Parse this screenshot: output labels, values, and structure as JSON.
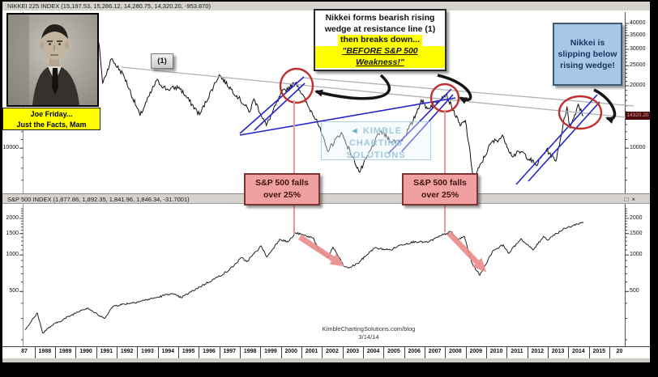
{
  "panes": {
    "nikkei": {
      "header": "NIKKEI 225 INDEX (15,197.53, 15,286.12, 14,280.75, 14,320.20, -953.870)"
    },
    "sp500": {
      "header": "S&P 500 INDEX (1,877.86, 1,892.35, 1,841.96, 1,846.34, -31.7001)",
      "controls": {
        "restore": "□",
        "close": "×"
      }
    }
  },
  "photo": {
    "caption1": "Joe Friday...",
    "caption2": "Just the Facts, Mam"
  },
  "annotations": {
    "resistance_label": "(1)",
    "yellow_box": {
      "line1": "Nikkei forms bearish rising",
      "line2": "wedge at resistance line (1)",
      "line3": "then breaks down...",
      "line4": "\"BEFORE S&P 500 Weakness!\""
    },
    "blue_box": {
      "text": "Nikkei is slipping below rising wedge!"
    },
    "pink_box_1": {
      "text": "S&P 500 falls over 25%"
    },
    "pink_box_2": {
      "text": "S&P 500 falls over 25%"
    },
    "price_badge": "14320.20",
    "watermark_center": {
      "arrow": "◄",
      "line1": "KIMBLE CHARTING",
      "line2": "SOLUTIONS"
    },
    "watermark_bottom": {
      "line1": "KimbleChartingSolutions.com/blog",
      "line2": "3/14/14"
    }
  },
  "colors": {
    "highlight_yellow": "#ffff00",
    "blue_box_bg": "#a7c7e7",
    "pink_box_bg": "#f0a0a0",
    "circle_red": "#bf3030",
    "wedge_blue": "#2424cc",
    "arrow_red": "#ec8b8b",
    "annotation_pink_line": "#e59b9b",
    "header_gray": "#d6d3ce",
    "badge_bg": "#4d0d0d"
  },
  "x_axis": {
    "labels": [
      "87",
      "1988",
      "1989",
      "1990",
      "1991",
      "1992",
      "1993",
      "1994",
      "1995",
      "1996",
      "1997",
      "1998",
      "1999",
      "2000",
      "2001",
      "2002",
      "2003",
      "2004",
      "2005",
      "2006",
      "2007",
      "2008",
      "2009",
      "2010",
      "2011",
      "2012",
      "2013",
      "2014",
      "2015",
      "20"
    ]
  },
  "chart_data": [
    {
      "type": "line",
      "title": "NIKKEI 225 INDEX",
      "scale": "log",
      "x_range": [
        1987,
        2016.3
      ],
      "ylim": [
        6500,
        45000
      ],
      "y_ticks_right": [
        40000,
        35000,
        30000,
        25000,
        20000,
        10000
      ],
      "y_ticks_left": [
        10000
      ],
      "grid": false,
      "series": [
        {
          "name": "NIKKEI 225",
          "x": [
            1987.0,
            1987.45,
            1987.75,
            1987.88,
            1988.6,
            1989.0,
            1989.95,
            1990.25,
            1990.5,
            1990.62,
            1990.78,
            1991.2,
            1991.8,
            1992.6,
            1993.4,
            1993.9,
            1994.5,
            1995.5,
            1996.45,
            1997.4,
            1997.95,
            1998.15,
            1998.75,
            1999.5,
            2000.2,
            2000.8,
            2001.2,
            2001.72,
            2002.4,
            2003.3,
            2004.3,
            2004.9,
            2005.4,
            2005.9,
            2006.3,
            2006.6,
            2007.5,
            2008.2,
            2008.45,
            2008.85,
            2009.7,
            2010.3,
            2010.7,
            2011.2,
            2011.9,
            2012.4,
            2012.85,
            2013.4,
            2013.55,
            2013.95,
            2014.2
          ],
          "values": [
            20000,
            24500,
            26600,
            21500,
            27500,
            31500,
            38900,
            29500,
            33000,
            31000,
            20500,
            27000,
            22500,
            14350,
            21200,
            19200,
            19700,
            14500,
            22600,
            17500,
            15000,
            17300,
            12850,
            18500,
            20800,
            15800,
            13800,
            9700,
            11900,
            7650,
            12100,
            10700,
            11050,
            13500,
            17100,
            15500,
            18250,
            12800,
            13600,
            7050,
            10600,
            11350,
            9200,
            9600,
            8250,
            9850,
            8650,
            15900,
            12450,
            16300,
            14320
          ]
        }
      ],
      "key_points": [
        {
          "x": 2000.2,
          "value": 20800,
          "note": "rising wedge apex at resistance line (1), circled"
        },
        {
          "x": 2007.5,
          "value": 18250,
          "note": "rising wedge apex at resistance line (1), circled"
        },
        {
          "x": 2014.1,
          "value": 15000,
          "note": "current wedge breakdown, circled"
        }
      ]
    },
    {
      "type": "line",
      "title": "S&P 500 INDEX",
      "scale": "log",
      "x_range": [
        1987,
        2016.3
      ],
      "ylim": [
        180,
        2400
      ],
      "y_ticks": [
        2000,
        1500,
        1000,
        500
      ],
      "grid": false,
      "series": [
        {
          "name": "S&P 500",
          "x": [
            1987.0,
            1987.6,
            1987.85,
            1988.3,
            1989.7,
            1990.05,
            1990.55,
            1990.85,
            1991.3,
            1992.5,
            1993.5,
            1994.1,
            1994.6,
            1995.5,
            1996.4,
            1996.9,
            1997.55,
            1997.8,
            1998.5,
            1998.78,
            1999.4,
            1999.8,
            2000.2,
            2000.7,
            2001.05,
            2001.3,
            2001.75,
            2002.0,
            2002.55,
            2002.75,
            2003.2,
            2004.0,
            2004.8,
            2005.3,
            2006.0,
            2006.6,
            2007.3,
            2007.75,
            2008.05,
            2008.4,
            2008.75,
            2009.15,
            2009.8,
            2010.3,
            2010.55,
            2011.15,
            2011.35,
            2011.75,
            2012.25,
            2012.45,
            2012.75,
            2013.3,
            2013.9,
            2014.2
          ],
          "values": [
            242,
            332,
            228,
            262,
            350,
            366,
            320,
            300,
            380,
            412,
            450,
            482,
            445,
            545,
            660,
            740,
            950,
            880,
            1186,
            960,
            1350,
            1280,
            1520,
            1430,
            1380,
            1100,
            950,
            1160,
            800,
            780,
            850,
            1140,
            1100,
            1210,
            1290,
            1270,
            1450,
            1560,
            1330,
            1420,
            870,
            680,
            1090,
            1210,
            1030,
            1360,
            1260,
            1100,
            1420,
            1330,
            1460,
            1650,
            1800,
            1860
          ]
        }
      ],
      "key_points": [
        {
          "x": 2000.2,
          "value": 1520,
          "note": "peak before >25% fall"
        },
        {
          "x": 2007.75,
          "value": 1560,
          "note": "peak before >25% fall"
        }
      ]
    }
  ]
}
